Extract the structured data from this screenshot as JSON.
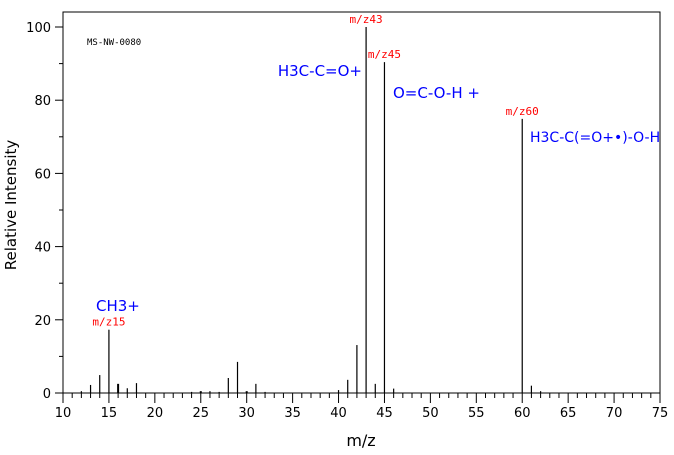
{
  "chart_data": {
    "type": "bar",
    "title": "",
    "annotation_id": "MS-NW-0080",
    "xlabel": "m/z",
    "ylabel": "Relative Intensity",
    "xlim": [
      10,
      75
    ],
    "ylim": [
      0,
      100
    ],
    "xticks": [
      10,
      15,
      20,
      25,
      30,
      35,
      40,
      45,
      50,
      55,
      60,
      65,
      70,
      75
    ],
    "yticks": [
      0,
      20,
      40,
      60,
      80,
      100
    ],
    "grid": false,
    "x": [
      12,
      13,
      14,
      15,
      16,
      17,
      18,
      24,
      25,
      26,
      27,
      28,
      29,
      30,
      31,
      32,
      40,
      41,
      42,
      43,
      44,
      45,
      46,
      60,
      61,
      62
    ],
    "values": [
      0.5,
      2.2,
      4.9,
      17.3,
      2.5,
      1.3,
      2.7,
      0.3,
      0.5,
      0.5,
      0.3,
      4.1,
      8.5,
      0.5,
      2.5,
      0.3,
      0.8,
      3.6,
      13.1,
      100,
      2.5,
      90.4,
      1.2,
      74.9,
      2.0,
      0.5
    ],
    "peak_labels": [
      {
        "mz": 15,
        "label": "m/z15",
        "fragment": "CH3+"
      },
      {
        "mz": 43,
        "label": "m/z43",
        "fragment": "H3C-C=O+"
      },
      {
        "mz": 45,
        "label": "m/z45",
        "fragment": "O=C-O-H +"
      },
      {
        "mz": 60,
        "label": "m/z60",
        "fragment": "H3C-C(=O+•)-O-H"
      }
    ],
    "colors": {
      "axis": "#000000",
      "label": "#ff0000",
      "structure": "#0000ff"
    }
  }
}
